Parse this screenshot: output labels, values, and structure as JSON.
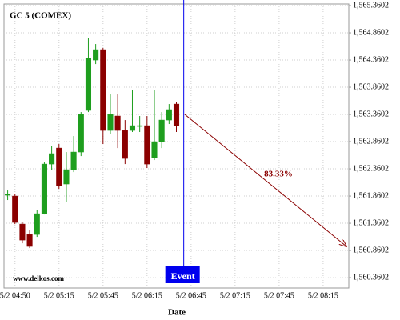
{
  "chart_data": {
    "type": "candlestick",
    "title": "GC 5 (COMEX)",
    "x_label": "Date",
    "watermark": "www.delkos.com",
    "event_label": "Event",
    "annotations": [
      "83.33%"
    ],
    "categories": [
      null,
      "5/2 04:50",
      null,
      null,
      null,
      null,
      null,
      "5/2 05:15",
      null,
      null,
      null,
      null,
      null,
      "5/2 05:45",
      null,
      null,
      null,
      null,
      null,
      "5/2 06:15",
      null,
      null,
      null,
      null,
      null,
      "5/2 06:45",
      null,
      null,
      null,
      null,
      null,
      "5/2 07:15",
      null,
      null,
      null,
      null,
      null,
      "5/2 07:45",
      null,
      null,
      null,
      null,
      null,
      "5/2 08:15",
      null,
      null,
      null
    ],
    "open": [
      1561.89,
      1561.86,
      1561.345,
      1561.154,
      1561.154,
      1561.536,
      1562.448,
      1562.742,
      1562.081,
      1562.345,
      1562.669,
      1563.434,
      1564.36,
      1564.551,
      1563.066,
      1563.331,
      1563.066,
      1563.066,
      1563.14,
      1563.154,
      1562.566,
      1562.86,
      1563.257,
      1563.551,
      null,
      null,
      null,
      null,
      null,
      null,
      null,
      null,
      null,
      null,
      null,
      null,
      null,
      null,
      null,
      null,
      null,
      null,
      null,
      null,
      null,
      null,
      null
    ],
    "high": [
      1561.963,
      1561.89,
      1561.375,
      1561.228,
      1561.61,
      1562.478,
      1562.787,
      1562.816,
      1562.669,
      1562.963,
      1563.404,
      1564.772,
      1564.654,
      1564.581,
      1563.728,
      1563.728,
      1563.257,
      1563.816,
      1563.331,
      1563.331,
      1563.816,
      1563.404,
      1563.551,
      1563.581,
      null,
      null,
      null,
      null,
      null,
      null,
      null,
      null,
      null,
      null,
      null,
      null,
      null,
      null,
      null,
      null,
      null,
      null,
      null,
      null,
      null,
      null,
      null
    ],
    "low": [
      1561.787,
      1561.345,
      1560.992,
      1560.904,
      1561.11,
      1561.522,
      1562.345,
      1561.993,
      1561.757,
      1562.301,
      1562.595,
      1563.404,
      1564.286,
      1562.816,
      1562.993,
      1562.742,
      1562.448,
      1563.037,
      1563.037,
      1562.375,
      1562.522,
      1562.742,
      1563.184,
      1563.037,
      null,
      null,
      null,
      null,
      null,
      null,
      null,
      null,
      null,
      null,
      null,
      null,
      null,
      null,
      null,
      null,
      null,
      null,
      null,
      null,
      null,
      null,
      null
    ],
    "close": [
      1561.89,
      1561.375,
      1561.051,
      1560.934,
      1561.536,
      1562.448,
      1562.64,
      1562.051,
      1562.345,
      1562.669,
      1563.36,
      1564.39,
      1564.551,
      1563.066,
      1563.36,
      1563.066,
      1562.551,
      1563.154,
      1563.154,
      1562.448,
      1562.86,
      1563.257,
      1563.449,
      1563.154,
      null,
      null,
      null,
      null,
      null,
      null,
      null,
      null,
      null,
      null,
      null,
      null,
      null,
      null,
      null,
      null,
      null,
      null,
      null,
      null,
      null,
      null,
      null
    ],
    "up_color": "#1e9e1e",
    "down_color": "#8b0000",
    "event_color": "#0000ee",
    "grid": true,
    "ylim": [
      1560.17,
      1565.39
    ],
    "yticks": [
      {
        "value": 1560.3602,
        "label": "1,560.3602"
      },
      {
        "value": 1560.8602,
        "label": "1,560.8602"
      },
      {
        "value": 1561.3602,
        "label": "1,561.3602"
      },
      {
        "value": 1561.8602,
        "label": "1,561.8602"
      },
      {
        "value": 1562.3602,
        "label": "1,562.3602"
      },
      {
        "value": 1562.8602,
        "label": "1,562.8602"
      },
      {
        "value": 1563.3602,
        "label": "1,563.3602"
      },
      {
        "value": 1563.8602,
        "label": "1,563.8602"
      },
      {
        "value": 1564.3602,
        "label": "1,564.3602"
      },
      {
        "value": 1564.8602,
        "label": "1,564.8602"
      },
      {
        "value": 1565.3602,
        "label": "1,565.3602"
      }
    ]
  }
}
